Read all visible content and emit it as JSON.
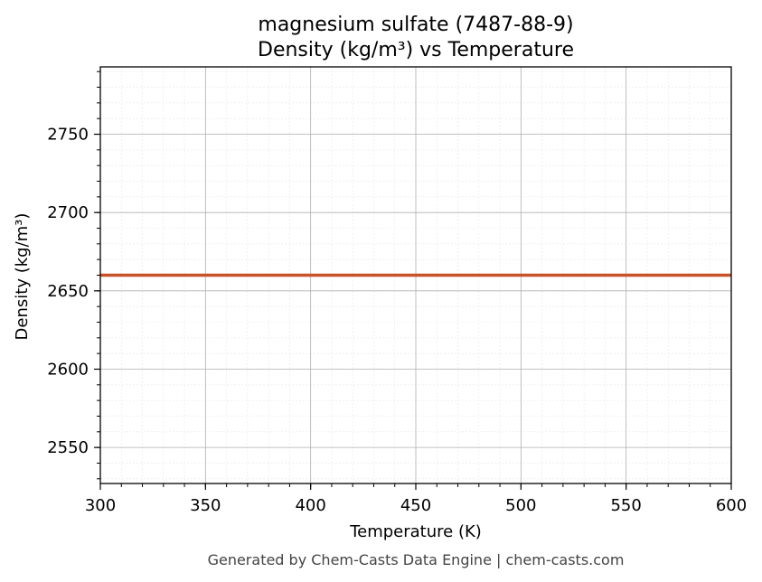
{
  "chart_data": {
    "type": "line",
    "title_line1": "magnesium sulfate (7487-88-9)",
    "title_line2": "Density (kg/m³) vs Temperature",
    "xlabel": "Temperature (K)",
    "ylabel": "Density (kg/m³)",
    "xlim": [
      300,
      600
    ],
    "ylim": [
      2527,
      2793
    ],
    "x_ticks": [
      300,
      350,
      400,
      450,
      500,
      550,
      600
    ],
    "y_ticks": [
      2550,
      2600,
      2650,
      2700,
      2750
    ],
    "x_minor_step": 10,
    "y_minor_step": 10,
    "grid": true,
    "series": [
      {
        "color": "#c8522a",
        "x": [
          300,
          600
        ],
        "y": [
          2660,
          2660
        ]
      }
    ]
  },
  "footer": "Generated by Chem-Casts Data Engine | chem-casts.com"
}
